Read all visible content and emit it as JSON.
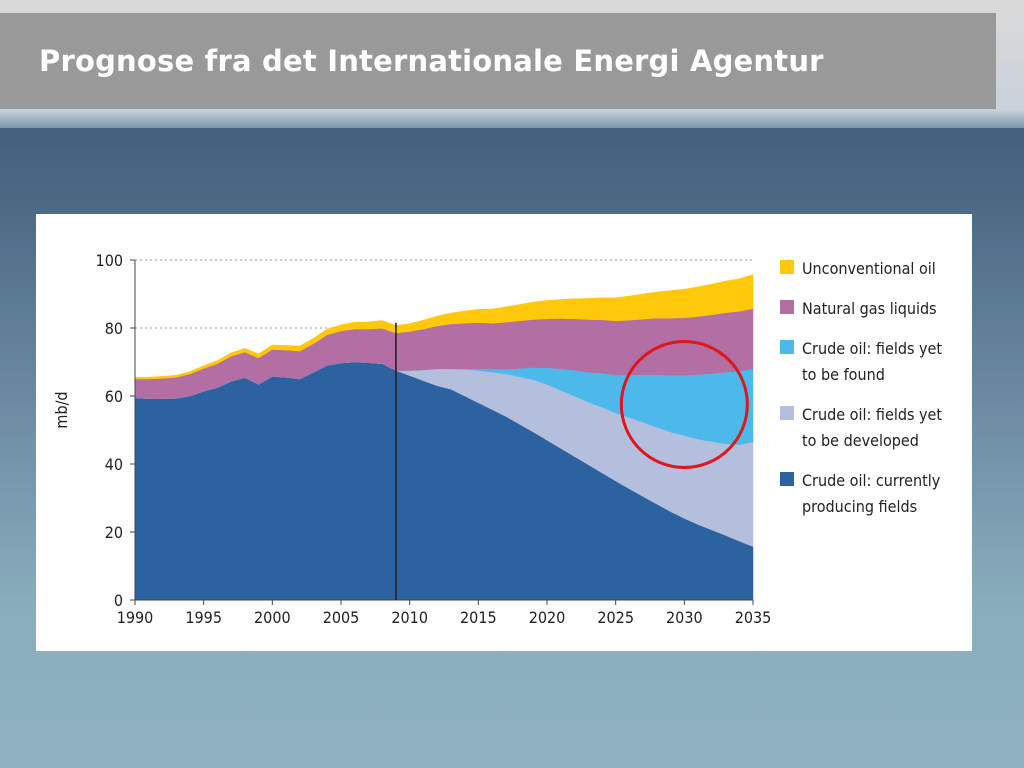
{
  "slide": {
    "title": "Prognose fra det Internationale Energi Agentur"
  },
  "colors": {
    "unconventional": "#ffc80a",
    "ngl": "#b36fa3",
    "yet_found": "#4db9ea",
    "yet_developed": "#b3bfdd",
    "producing": "#2d62a0",
    "circle": "#e0161d"
  },
  "chart_data": {
    "type": "area",
    "stacked": true,
    "ylabel": "mb/d",
    "xlabel": "",
    "ylim": [
      0,
      100
    ],
    "xlim": [
      1990,
      2035
    ],
    "yticks": [
      "0",
      "20",
      "40",
      "60",
      "80",
      "100"
    ],
    "xticks": [
      "1990",
      "1995",
      "2000",
      "2005",
      "2010",
      "2015",
      "2020",
      "2025",
      "2030",
      "2035"
    ],
    "grid": "dotted horizontal at 80 and 100",
    "vertical_marker_x": 2009,
    "annotation": "red circle around 2030",
    "x": [
      1990,
      1991,
      1992,
      1993,
      1994,
      1995,
      1996,
      1997,
      1998,
      1999,
      2000,
      2001,
      2002,
      2003,
      2004,
      2005,
      2006,
      2007,
      2008,
      2009,
      2010,
      2011,
      2012,
      2013,
      2014,
      2015,
      2016,
      2017,
      2018,
      2019,
      2020,
      2021,
      2022,
      2023,
      2024,
      2025,
      2026,
      2027,
      2028,
      2029,
      2030,
      2031,
      2032,
      2033,
      2034,
      2035
    ],
    "series": [
      {
        "name": "Crude oil: currently producing fields",
        "key": "producing",
        "values": [
          59.5,
          59.2,
          59.2,
          59.3,
          60,
          61.4,
          62.5,
          64.3,
          65.4,
          63.4,
          65.8,
          65.5,
          65,
          67,
          69,
          69.7,
          70,
          69.8,
          69.5,
          67.5,
          66,
          64.5,
          63,
          62,
          60,
          58,
          56,
          54,
          51.7,
          49.4,
          47,
          44.6,
          42.2,
          39.8,
          37.4,
          35,
          32.7,
          30.4,
          28.2,
          26,
          24,
          22.2,
          20.6,
          19,
          17.3,
          15.7
        ]
      },
      {
        "name": "Crude oil: fields yet to be developed",
        "key": "yet_developed",
        "values": [
          0,
          0,
          0,
          0,
          0,
          0,
          0,
          0,
          0,
          0,
          0,
          0,
          0,
          0,
          0,
          0,
          0,
          0,
          0,
          0,
          1.5,
          3.2,
          5,
          6,
          7.8,
          9.5,
          11,
          12.5,
          14,
          15.4,
          16.4,
          17.1,
          17.8,
          18.4,
          19.3,
          20,
          21,
          21.9,
          22.6,
          23.4,
          24.4,
          25.1,
          26,
          27,
          28.4,
          30.8
        ]
      },
      {
        "name": "Crude oil: fields yet to be found",
        "key": "yet_found",
        "values": [
          0,
          0,
          0,
          0,
          0,
          0,
          0,
          0,
          0,
          0,
          0,
          0,
          0,
          0,
          0,
          0,
          0,
          0,
          0,
          0,
          0,
          0,
          0,
          0,
          0.2,
          0.5,
          1,
          1.4,
          2.4,
          3.6,
          4.9,
          6.3,
          7.6,
          8.8,
          10,
          11.2,
          12.5,
          14,
          15.5,
          16.7,
          17.7,
          19,
          20,
          21,
          21.6,
          21.5
        ]
      },
      {
        "name": "Natural gas liquids",
        "key": "ngl",
        "values": [
          5.5,
          5.8,
          6,
          6.2,
          6.5,
          6.7,
          7,
          7.4,
          7.5,
          7.8,
          7.9,
          8,
          8.2,
          8.4,
          9,
          9.4,
          9.7,
          9.9,
          10.4,
          11,
          11.5,
          12,
          12.6,
          13.2,
          13.4,
          13.6,
          13.4,
          13.8,
          14,
          14.1,
          14.4,
          14.8,
          15.1,
          15.5,
          15.7,
          15.9,
          16.1,
          16.3,
          16.6,
          16.8,
          16.9,
          17.1,
          17.3,
          17.5,
          17.6,
          17.7
        ]
      },
      {
        "name": "Unconventional oil",
        "key": "unconventional",
        "values": [
          0.5,
          0.5,
          0.6,
          0.6,
          0.7,
          0.8,
          0.9,
          1,
          1.1,
          1.2,
          1.3,
          1.4,
          1.5,
          1.6,
          1.7,
          1.8,
          2,
          2.1,
          2.3,
          2.2,
          2.3,
          2.6,
          2.9,
          3.2,
          3.6,
          3.9,
          4.2,
          4.5,
          4.8,
          5.1,
          5.4,
          5.6,
          5.9,
          6.2,
          6.5,
          6.8,
          7.1,
          7.4,
          7.7,
          8.1,
          8.4,
          8.7,
          9,
          9.3,
          9.6,
          10
        ]
      }
    ]
  },
  "legend": [
    {
      "key": "unconventional",
      "label_lines": [
        "Unconventional oil"
      ]
    },
    {
      "key": "ngl",
      "label_lines": [
        "Natural gas liquids"
      ]
    },
    {
      "key": "yet_found",
      "label_lines": [
        "Crude oil: fields yet",
        "to be found"
      ]
    },
    {
      "key": "yet_developed",
      "label_lines": [
        "Crude oil: fields yet",
        "to be developed"
      ]
    },
    {
      "key": "producing",
      "label_lines": [
        "Crude oil: currently",
        "producing fields"
      ]
    }
  ]
}
